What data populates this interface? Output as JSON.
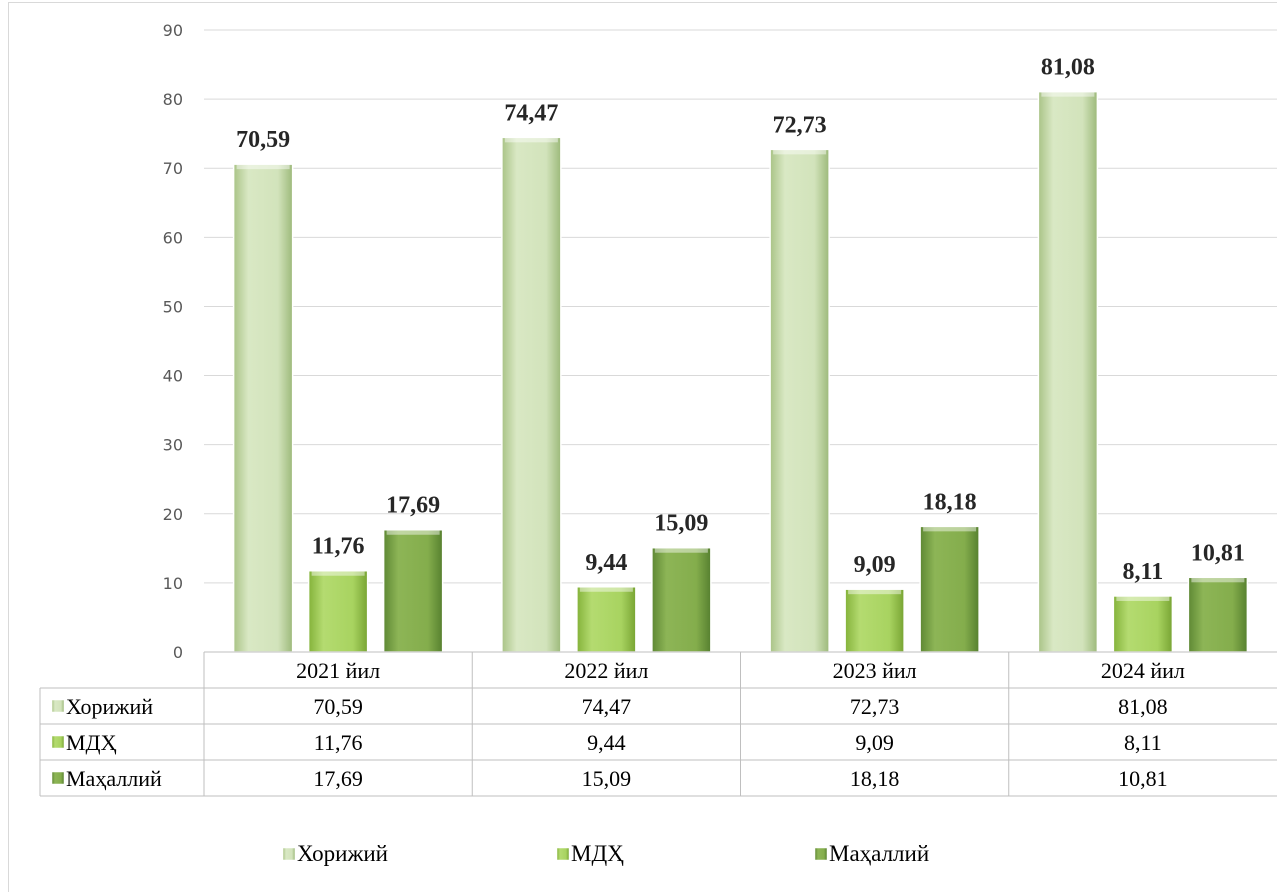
{
  "chart_data": {
    "type": "bar",
    "categories": [
      "2021 йил",
      "2022 йил",
      "2023 йил",
      "2024 йил"
    ],
    "series": [
      {
        "name": "Хорижий",
        "values": [
          70.59,
          74.47,
          72.73,
          81.08
        ],
        "labels": [
          "70,59",
          "74,47",
          "72,73",
          "81,08"
        ],
        "color": "#c7deaa"
      },
      {
        "name": "МДҲ",
        "values": [
          11.76,
          9.44,
          9.09,
          8.11
        ],
        "labels": [
          "11,76",
          "9,44",
          "9,09",
          "8,11"
        ],
        "color": "#9fcd52"
      },
      {
        "name": "Маҳаллий",
        "values": [
          17.69,
          15.09,
          18.18,
          10.81
        ],
        "labels": [
          "17,69",
          "15,09",
          "18,18",
          "10,81"
        ],
        "color": "#7ba646"
      }
    ],
    "ylim": [
      0,
      90
    ],
    "yticks": [
      0,
      10,
      20,
      30,
      40,
      50,
      60,
      70,
      80,
      90
    ],
    "grid": true,
    "data_table": true,
    "legend_position": "bottom"
  }
}
